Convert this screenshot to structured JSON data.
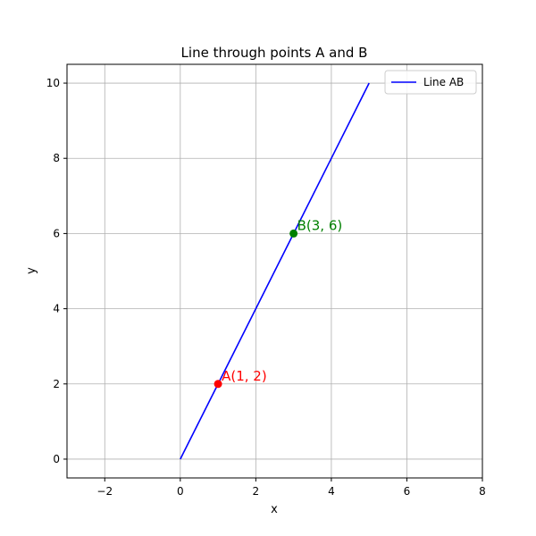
{
  "chart_data": {
    "type": "line",
    "title": "Line through points A and B",
    "xlabel": "x",
    "ylabel": "y",
    "xlim": [
      -3,
      8
    ],
    "ylim": [
      -0.5,
      10.5
    ],
    "x_ticks": [
      -2,
      0,
      2,
      4,
      6,
      8
    ],
    "x_tick_labels": [
      "−2",
      "0",
      "2",
      "4",
      "6",
      "8"
    ],
    "y_ticks": [
      0,
      2,
      4,
      6,
      8,
      10
    ],
    "y_tick_labels": [
      "0",
      "2",
      "4",
      "6",
      "8",
      "10"
    ],
    "grid": true,
    "legend_placement": "top-right",
    "series": [
      {
        "name": "Line AB",
        "color": "#0000ff",
        "x": [
          0,
          5
        ],
        "y": [
          0,
          10
        ]
      }
    ],
    "points": [
      {
        "label": "A(1, 2)",
        "x": 1,
        "y": 2,
        "color": "#ff0000"
      },
      {
        "label": "B(3, 6)",
        "x": 3,
        "y": 6,
        "color": "#008000"
      }
    ]
  }
}
